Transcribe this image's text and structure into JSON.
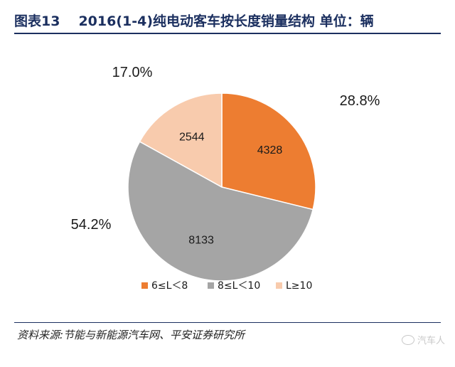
{
  "title": {
    "figure": "图表13",
    "text": "2016(1-4)纯电动客车按长度销量结构 单位：辆"
  },
  "chart_data": {
    "type": "pie",
    "start_angle_deg": 0,
    "direction": "clockwise",
    "slices": [
      {
        "label": "6≤L＜8",
        "value": 4328,
        "percent_label": "28.8%",
        "color": "#ed7d31"
      },
      {
        "label": "8≤L＜10",
        "value": 8133,
        "percent_label": "54.2%",
        "color": "#a5a5a5"
      },
      {
        "label": "L≥10",
        "value": 2544,
        "percent_label": "17.0%",
        "color": "#f8cbad"
      }
    ],
    "legend_position": "bottom"
  },
  "source": "资料来源:节能与新能源汽车网、平安证券研究所",
  "watermark": "汽车人"
}
